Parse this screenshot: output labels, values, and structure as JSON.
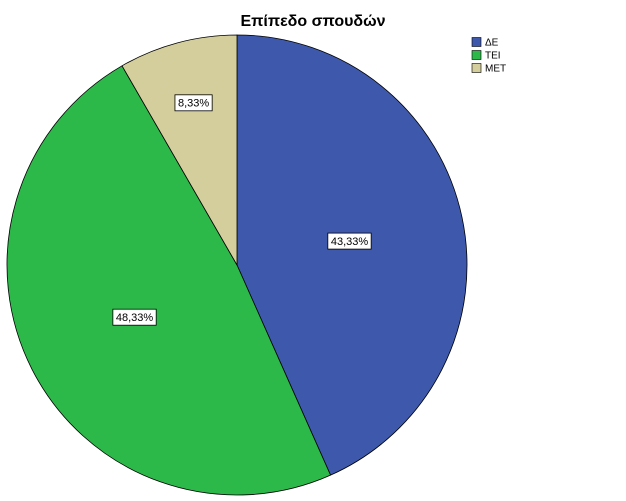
{
  "chart_data": {
    "type": "pie",
    "title": "Επίπεδο σπουδών",
    "categories": [
      "ΔΕ",
      "ΤΕΙ",
      "ΜΕΤ"
    ],
    "values": [
      43.33,
      48.33,
      8.33
    ],
    "value_labels": [
      "43,33%",
      "48,33%",
      "8,33%"
    ],
    "colors": [
      "#3e58ac",
      "#2db84a",
      "#d3ce9c"
    ]
  }
}
